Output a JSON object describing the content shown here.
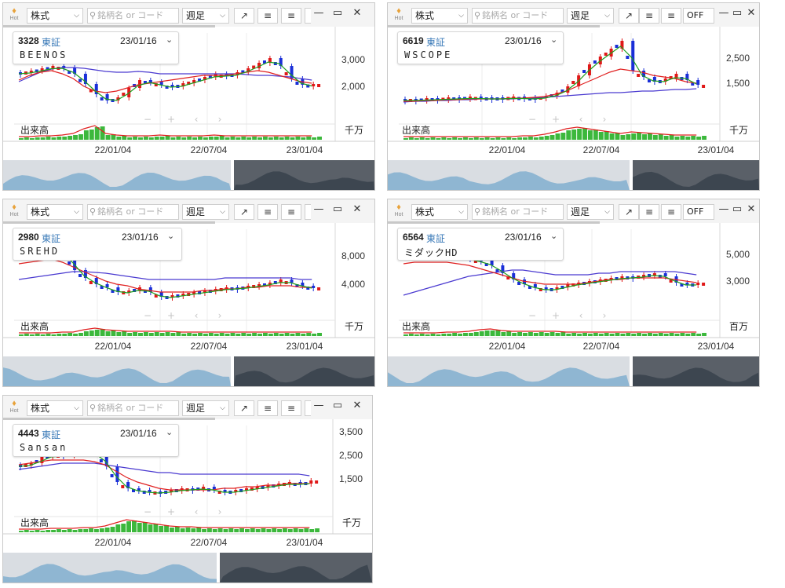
{
  "toolbar": {
    "hot_label": "Hot",
    "category_select": "株式",
    "search_placeholder": "銘柄名 or コード",
    "period_select": "週足",
    "off_label": "OFF",
    "icons": [
      "expand-arrow-icon",
      "align-left-icon",
      "align-right-icon",
      "minimize-icon",
      "restore-icon",
      "close-icon"
    ]
  },
  "colors": {
    "up_candle": "#e01818",
    "down_candle": "#1a2fd8",
    "ma_short": "#1e9e1e",
    "ma_mid": "#e02020",
    "ma_long": "#4a3ad0",
    "volume": "#3cb83c"
  },
  "nav": {
    "left": "‹",
    "right": "›",
    "minus": "−",
    "plus": "+"
  },
  "charts": [
    {
      "code": "3328",
      "exchange": "東証",
      "date": "23/01/16",
      "name": "BEENOS",
      "yticks": [
        "3,000",
        "2,000"
      ],
      "volume_label": "出来高",
      "volume_unit": "千万",
      "xticks": [
        "22/01/04",
        "22/07/04",
        "23/01/04"
      ],
      "show_off": false
    },
    {
      "code": "6619",
      "exchange": "東証",
      "date": "23/01/16",
      "name": "WSCOPE",
      "yticks": [
        "2,500",
        "1,500"
      ],
      "volume_label": "出来高",
      "volume_unit": "千万",
      "xticks": [
        "22/01/04",
        "22/07/04",
        "23/01/04"
      ],
      "show_off": true
    },
    {
      "code": "2980",
      "exchange": "東証",
      "date": "23/01/16",
      "name": "SREHD",
      "yticks": [
        "8,000",
        "4,000"
      ],
      "volume_label": "出来高",
      "volume_unit": "千万",
      "xticks": [
        "22/01/04",
        "22/07/04",
        "23/01/04"
      ],
      "show_off": false
    },
    {
      "code": "6564",
      "exchange": "東証",
      "date": "23/01/16",
      "name": "ミダックHD",
      "yticks": [
        "5,000",
        "3,000"
      ],
      "volume_label": "出来高",
      "volume_unit": "百万",
      "xticks": [
        "22/01/04",
        "22/07/04",
        "23/01/04"
      ],
      "show_off": true
    },
    {
      "code": "4443",
      "exchange": "東証",
      "date": "23/01/16",
      "name": "Sansan",
      "yticks": [
        "3,500",
        "2,500",
        "1,500"
      ],
      "volume_label": "出来高",
      "volume_unit": "千万",
      "xticks": [
        "22/01/04",
        "22/07/04",
        "23/01/04"
      ],
      "show_off": false
    }
  ]
}
